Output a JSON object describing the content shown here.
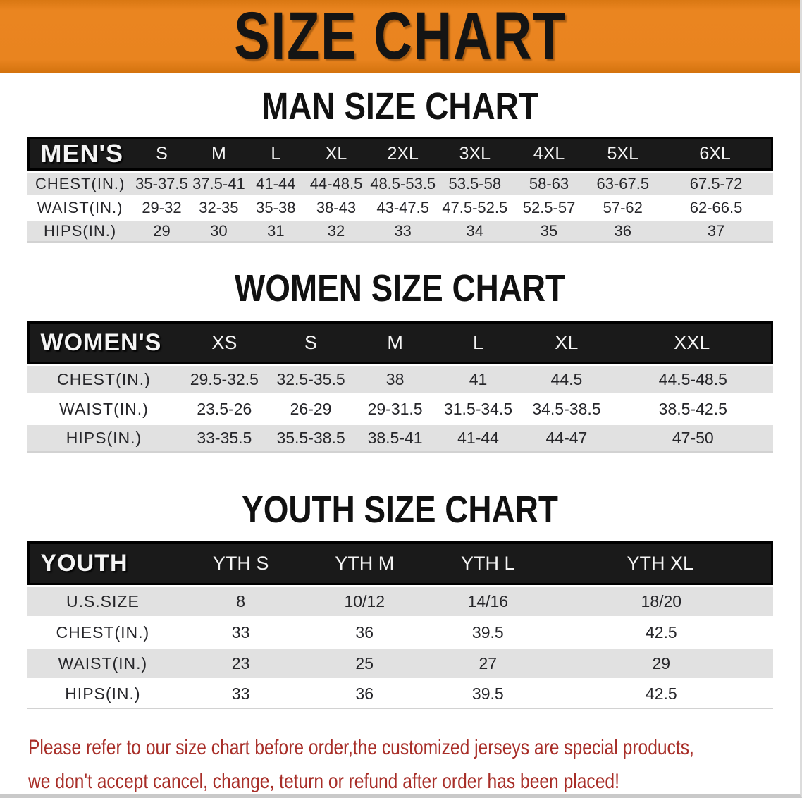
{
  "banner": {
    "title": "SIZE CHART",
    "bg_color": "#E9841F",
    "text_color": "#141414"
  },
  "sections": [
    {
      "heading": "MAN SIZE CHART",
      "table": {
        "header_label": "MEN'S",
        "columns": [
          "S",
          "M",
          "L",
          "XL",
          "2XL",
          "3XL",
          "4XL",
          "5XL",
          "6XL"
        ],
        "rows": [
          {
            "label": "CHEST(IN.)",
            "values": [
              "35-37.5",
              "37.5-41",
              "41-44",
              "44-48.5",
              "48.5-53.5",
              "53.5-58",
              "58-63",
              "63-67.5",
              "67.5-72"
            ]
          },
          {
            "label": "WAIST(IN.)",
            "values": [
              "29-32",
              "32-35",
              "35-38",
              "38-43",
              "43-47.5",
              "47.5-52.5",
              "52.5-57",
              "57-62",
              "62-66.5"
            ]
          },
          {
            "label": "HIPS(IN.)",
            "values": [
              "29",
              "30",
              "31",
              "32",
              "33",
              "34",
              "35",
              "36",
              "37"
            ]
          }
        ]
      }
    },
    {
      "heading": "WOMEN SIZE CHART",
      "table": {
        "header_label": "WOMEN'S",
        "columns": [
          "XS",
          "S",
          "M",
          "L",
          "XL",
          "XXL"
        ],
        "rows": [
          {
            "label": "CHEST(IN.)",
            "values": [
              "29.5-32.5",
              "32.5-35.5",
              "38",
              "41",
              "44.5",
              "44.5-48.5"
            ]
          },
          {
            "label": "WAIST(IN.)",
            "values": [
              "23.5-26",
              "26-29",
              "29-31.5",
              "31.5-34.5",
              "34.5-38.5",
              "38.5-42.5"
            ]
          },
          {
            "label": "HIPS(IN.)",
            "values": [
              "33-35.5",
              "35.5-38.5",
              "38.5-41",
              "41-44",
              "44-47",
              "47-50"
            ]
          }
        ]
      }
    },
    {
      "heading": "YOUTH SIZE CHART",
      "table": {
        "header_label": "YOUTH",
        "columns": [
          "YTH S",
          "YTH M",
          "YTH L",
          "YTH XL"
        ],
        "rows": [
          {
            "label": "U.S.SIZE",
            "values": [
              "8",
              "10/12",
              "14/16",
              "18/20"
            ]
          },
          {
            "label": "CHEST(IN.)",
            "values": [
              "33",
              "36",
              "39.5",
              "42.5"
            ]
          },
          {
            "label": "WAIST(IN.)",
            "values": [
              "23",
              "25",
              "27",
              "29"
            ]
          },
          {
            "label": "HIPS(IN.)",
            "values": [
              "33",
              "36",
              "39.5",
              "42.5"
            ]
          }
        ]
      }
    }
  ],
  "disclaimer": {
    "line1": "Please refer to our size chart before order,the customized jerseys are special products,",
    "line2": "we don't accept cancel, change, teturn or refund after order has been placed!",
    "color": "#A82E28"
  },
  "colors": {
    "table_header_bar": "#1A1A1A",
    "row_stripe": "#E1E1E1",
    "row_alt": "#FFFFFF"
  }
}
